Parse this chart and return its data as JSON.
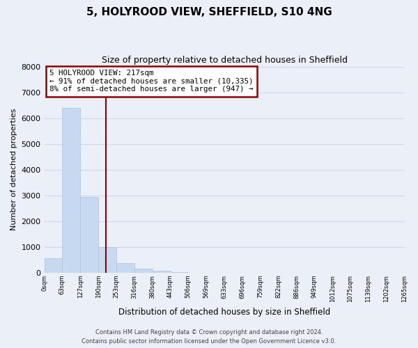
{
  "title": "5, HOLYROOD VIEW, SHEFFIELD, S10 4NG",
  "subtitle": "Size of property relative to detached houses in Sheffield",
  "xlabel": "Distribution of detached houses by size in Sheffield",
  "ylabel": "Number of detached properties",
  "bin_edges": [
    0,
    63,
    127,
    190,
    253,
    316,
    380,
    443,
    506,
    569,
    633,
    696,
    759,
    822,
    886,
    949,
    1012,
    1075,
    1139,
    1202,
    1265
  ],
  "bar_heights": [
    560,
    6400,
    2950,
    1000,
    380,
    160,
    80,
    20,
    0,
    0,
    0,
    0,
    0,
    0,
    0,
    0,
    0,
    0,
    0,
    0
  ],
  "bar_color": "#c6d9f0",
  "bar_edge_color": "#a8c4e0",
  "property_line_x": 217,
  "property_line_color": "#8b0000",
  "annotation_line1": "5 HOLYROOD VIEW: 217sqm",
  "annotation_line2": "← 91% of detached houses are smaller (10,335)",
  "annotation_line3": "8% of semi-detached houses are larger (947) →",
  "annotation_box_color": "#8b0000",
  "annotation_box_facecolor": "white",
  "ylim": [
    0,
    8000
  ],
  "yticks": [
    0,
    1000,
    2000,
    3000,
    4000,
    5000,
    6000,
    7000,
    8000
  ],
  "grid_color": "#d0d8e8",
  "background_color": "#eaeff8",
  "footer_line1": "Contains HM Land Registry data © Crown copyright and database right 2024.",
  "footer_line2": "Contains public sector information licensed under the Open Government Licence v3.0.",
  "tick_labels": [
    "0sqm",
    "63sqm",
    "127sqm",
    "190sqm",
    "253sqm",
    "316sqm",
    "380sqm",
    "443sqm",
    "506sqm",
    "569sqm",
    "633sqm",
    "696sqm",
    "759sqm",
    "822sqm",
    "886sqm",
    "949sqm",
    "1012sqm",
    "1075sqm",
    "1139sqm",
    "1202sqm",
    "1265sqm"
  ]
}
